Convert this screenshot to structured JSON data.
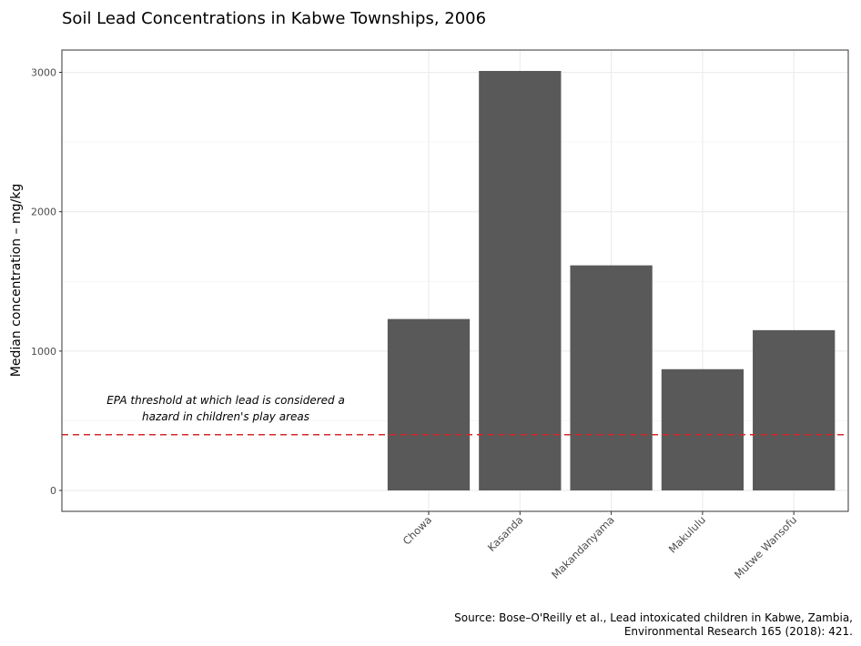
{
  "chart_data": {
    "type": "bar",
    "title": "Soil Lead Concentrations in Kabwe Townships, 2006",
    "xlabel": "",
    "ylabel": "Median concentration – mg/kg",
    "categories": [
      "Chowa",
      "Kasanda",
      "Makandanyama",
      "Makululu",
      "Mutwe Wansofu"
    ],
    "values": [
      1230,
      3010,
      1615,
      870,
      1150
    ],
    "y_ticks": [
      0,
      1000,
      2000,
      3000
    ],
    "ylim": [
      -150,
      3160
    ],
    "grid": true,
    "bar_color": "#595959",
    "threshold": {
      "value": 400,
      "color": "#d62728",
      "style": "dashed",
      "label_lines": [
        "EPA threshold at which lead is considered a",
        "hazard in children's play areas"
      ]
    },
    "caption_lines": [
      "Source: Bose–O'Reilly et al., Lead intoxicated children in Kabwe, Zambia,",
      "Environmental Research 165 (2018): 421."
    ]
  }
}
